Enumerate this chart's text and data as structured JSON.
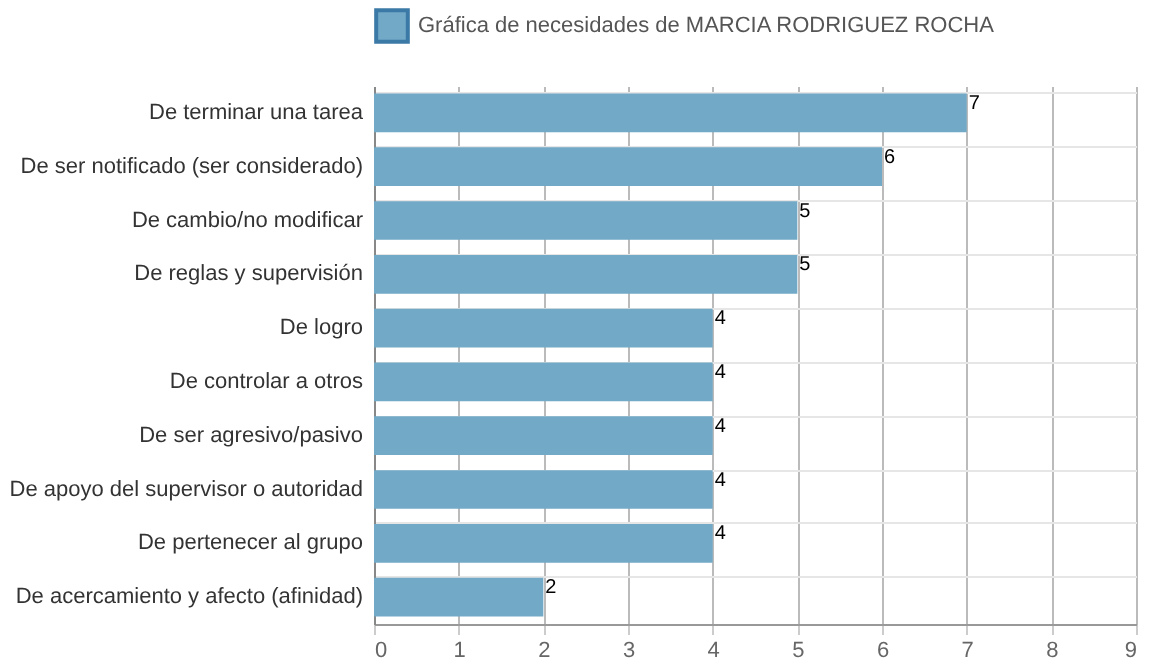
{
  "chart_data": {
    "type": "bar",
    "orientation": "horizontal",
    "categories": [
      "De terminar una tarea",
      "De ser notificado (ser considerado)",
      "De cambio/no modificar",
      "De reglas y supervisión",
      "De logro",
      "De controlar a otros",
      "De ser agresivo/pasivo",
      "De apoyo del supervisor o autoridad",
      "De pertenecer al grupo",
      "De acercamiento y afecto (afinidad)"
    ],
    "series": [
      {
        "name": "Gráfica de necesidades de MARCIA RODRIGUEZ ROCHA",
        "color": "#72a9c7",
        "values": [
          7,
          6,
          5,
          5,
          4,
          4,
          4,
          4,
          4,
          2
        ]
      }
    ],
    "xlim": [
      0,
      9
    ],
    "xticks": [
      0,
      1,
      2,
      3,
      4,
      5,
      6,
      7,
      8,
      9
    ],
    "grid": true,
    "legend": "top",
    "data_labels": true
  }
}
